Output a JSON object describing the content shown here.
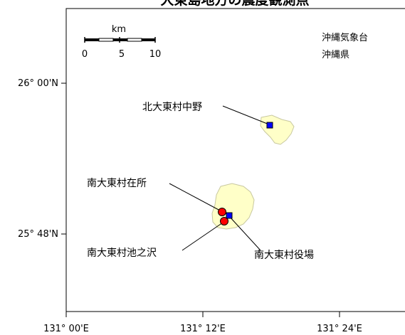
{
  "map": {
    "title": "大東島地方の震度観測点",
    "credits": [
      "沖縄気象台",
      "沖縄県"
    ],
    "scale": {
      "unit": "km",
      "ticks": [
        "0",
        "5",
        "10"
      ]
    },
    "lat_ticks": [
      "26° 00'N",
      "25° 48'N"
    ],
    "lon_ticks": [
      "131° 00'E",
      "131° 12'E",
      "131° 24'E"
    ],
    "stations": [
      {
        "name": "北大東村中野",
        "marker": "square",
        "color": "#0000ff"
      },
      {
        "name": "南大東村在所",
        "marker": "circle",
        "color": "#ff0000"
      },
      {
        "name": "南大東村池之沢",
        "marker": "circle",
        "color": "#ff0000"
      },
      {
        "name": "南大東村役場",
        "marker": "square",
        "color": "#0000ff"
      }
    ],
    "colors": {
      "land": "#ffffc8",
      "frame": "#000000"
    }
  }
}
